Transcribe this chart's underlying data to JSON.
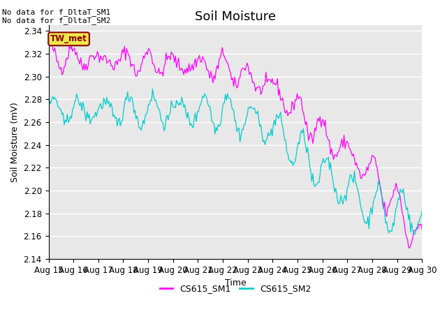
{
  "title": "Soil Moisture",
  "ylabel": "Soil Moisture (mV)",
  "xlabel": "Time",
  "ylim": [
    2.14,
    2.345
  ],
  "yticks": [
    2.14,
    2.16,
    2.18,
    2.2,
    2.22,
    2.24,
    2.26,
    2.28,
    2.3,
    2.32,
    2.34
  ],
  "x_labels": [
    "Aug 15",
    "Aug 16",
    "Aug 17",
    "Aug 18",
    "Aug 19",
    "Aug 20",
    "Aug 21",
    "Aug 22",
    "Aug 23",
    "Aug 24",
    "Aug 25",
    "Aug 26",
    "Aug 27",
    "Aug 28",
    "Aug 29",
    "Aug 30"
  ],
  "color_sm1": "#FF00FF",
  "color_sm2": "#00CCCC",
  "legend_sm1": "CS615_SM1",
  "legend_sm2": "CS615_SM2",
  "annotation_text": "No data for f_DltaT_SM1\nNo data for f_DltaT_SM2",
  "tw_met_label": "TW_met",
  "background_color": "#E8E8E8",
  "grid_color": "#FFFFFF",
  "title_fontsize": 13,
  "label_fontsize": 9,
  "tick_fontsize": 8.5
}
